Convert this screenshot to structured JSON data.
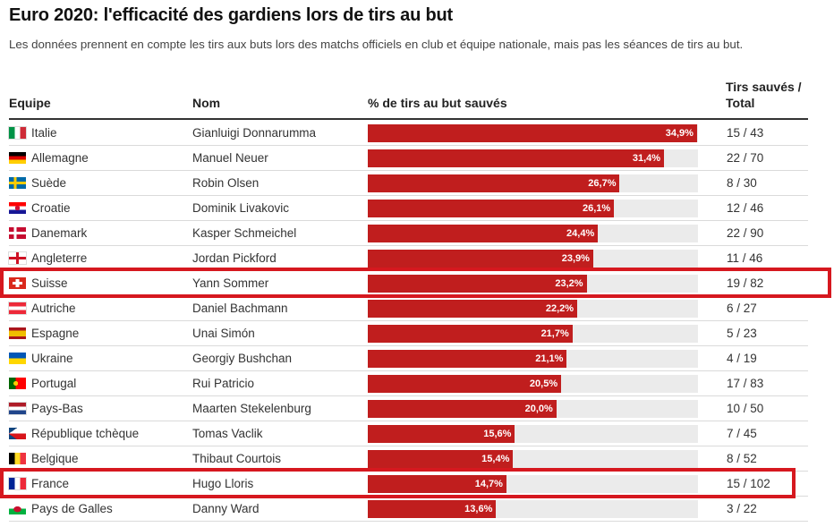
{
  "title": "Euro 2020: l'efficacité des gardiens lors de tirs au but",
  "subtitle": "Les données prennent en compte les tirs aux buts lors des matchs officiels en club et équipe nationale, mais pas les séances de tirs au but.",
  "headers": {
    "equipe": "Equipe",
    "nom": "Nom",
    "pct": "% de tirs au but sauvés",
    "tirs": "Tirs sauvés / Total"
  },
  "colors": {
    "bar": "#c01e1e",
    "track": "#ebebeb",
    "highlight": "#d6181f"
  },
  "chart_data": {
    "type": "bar",
    "orientation": "horizontal",
    "xlim": [
      0,
      35
    ],
    "categories": [
      "Italie",
      "Allemagne",
      "Suède",
      "Croatie",
      "Danemark",
      "Angleterre",
      "Suisse",
      "Autriche",
      "Espagne",
      "Ukraine",
      "Portugal",
      "Pays-Bas",
      "République tchèque",
      "Belgique",
      "France",
      "Pays de Galles"
    ],
    "values": [
      34.9,
      31.4,
      26.7,
      26.1,
      24.4,
      23.9,
      23.2,
      22.2,
      21.7,
      21.1,
      20.5,
      20.0,
      15.6,
      15.4,
      14.7,
      13.6
    ],
    "rows": [
      {
        "country": "Italie",
        "flag": "flag-italy-icon",
        "name": "Gianluigi Donnarumma",
        "pct": 34.9,
        "pct_label": "34,9%",
        "ratio": "15 / 43"
      },
      {
        "country": "Allemagne",
        "flag": "flag-germany-icon",
        "name": "Manuel Neuer",
        "pct": 31.4,
        "pct_label": "31,4%",
        "ratio": "22 / 70"
      },
      {
        "country": "Suède",
        "flag": "flag-sweden-icon",
        "name": "Robin Olsen",
        "pct": 26.7,
        "pct_label": "26,7%",
        "ratio": "8 / 30"
      },
      {
        "country": "Croatie",
        "flag": "flag-croatia-icon",
        "name": "Dominik Livakovic",
        "pct": 26.1,
        "pct_label": "26,1%",
        "ratio": "12 / 46"
      },
      {
        "country": "Danemark",
        "flag": "flag-denmark-icon",
        "name": "Kasper Schmeichel",
        "pct": 24.4,
        "pct_label": "24,4%",
        "ratio": "22 / 90"
      },
      {
        "country": "Angleterre",
        "flag": "flag-england-icon",
        "name": "Jordan Pickford",
        "pct": 23.9,
        "pct_label": "23,9%",
        "ratio": "11 / 46"
      },
      {
        "country": "Suisse",
        "flag": "flag-switzerland-icon",
        "name": "Yann Sommer",
        "pct": 23.2,
        "pct_label": "23,2%",
        "ratio": "19 / 82",
        "highlight": true
      },
      {
        "country": "Autriche",
        "flag": "flag-austria-icon",
        "name": "Daniel Bachmann",
        "pct": 22.2,
        "pct_label": "22,2%",
        "ratio": "6 / 27"
      },
      {
        "country": "Espagne",
        "flag": "flag-spain-icon",
        "name": "Unai Simón",
        "pct": 21.7,
        "pct_label": "21,7%",
        "ratio": "5 / 23"
      },
      {
        "country": "Ukraine",
        "flag": "flag-ukraine-icon",
        "name": "Georgiy Bushchan",
        "pct": 21.1,
        "pct_label": "21,1%",
        "ratio": "4 / 19"
      },
      {
        "country": "Portugal",
        "flag": "flag-portugal-icon",
        "name": "Rui Patricio",
        "pct": 20.5,
        "pct_label": "20,5%",
        "ratio": "17 / 83"
      },
      {
        "country": "Pays-Bas",
        "flag": "flag-netherlands-icon",
        "name": "Maarten Stekelenburg",
        "pct": 20.0,
        "pct_label": "20,0%",
        "ratio": "10 / 50"
      },
      {
        "country": "République tchèque",
        "flag": "flag-czech-icon",
        "name": "Tomas Vaclik",
        "pct": 15.6,
        "pct_label": "15,6%",
        "ratio": "7 / 45"
      },
      {
        "country": "Belgique",
        "flag": "flag-belgium-icon",
        "name": "Thibaut Courtois",
        "pct": 15.4,
        "pct_label": "15,4%",
        "ratio": "8 / 52"
      },
      {
        "country": "France",
        "flag": "flag-france-icon",
        "name": "Hugo Lloris",
        "pct": 14.7,
        "pct_label": "14,7%",
        "ratio": "15 / 102",
        "highlight": true
      },
      {
        "country": "Pays de Galles",
        "flag": "flag-wales-icon",
        "name": "Danny Ward",
        "pct": 13.6,
        "pct_label": "13,6%",
        "ratio": "3 / 22"
      }
    ]
  }
}
